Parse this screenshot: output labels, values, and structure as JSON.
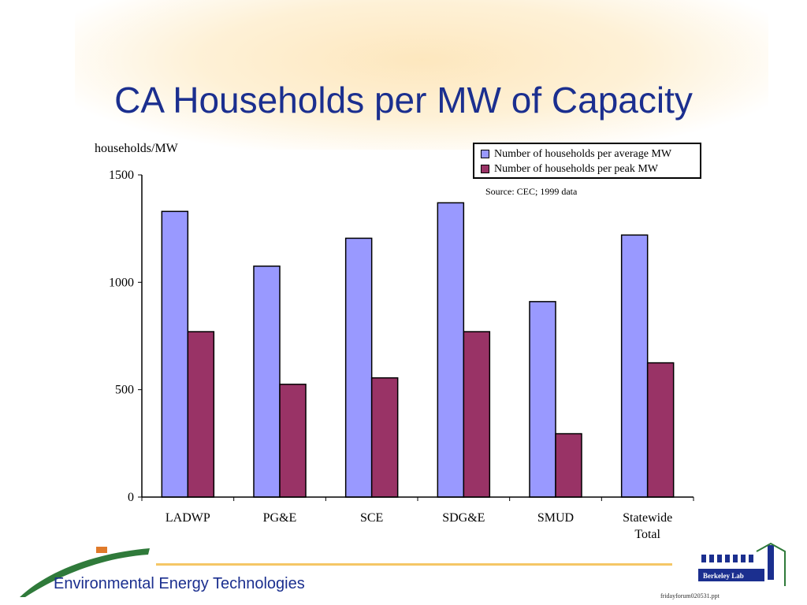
{
  "slide": {
    "title": "CA Households per MW of Capacity",
    "footer_text": "Environmental Energy Technologies",
    "footer_file": "fridayforum020531.ppt",
    "logo_text": "Berkeley Lab"
  },
  "colors": {
    "title": "#1b2f8f",
    "series_average": "#9999ff",
    "series_peak": "#993366",
    "footer_line": "#f5c766"
  },
  "source_note": "Source:  CEC; 1999 data",
  "chart_data": {
    "type": "bar",
    "ylabel": "households/MW",
    "xlabel": "",
    "ylim": [
      0,
      1500
    ],
    "yticks": [
      0,
      500,
      1000,
      1500
    ],
    "categories": [
      "LADWP",
      "PG&E",
      "SCE",
      "SDG&E",
      "SMUD",
      "Statewide Total"
    ],
    "series": [
      {
        "name": "Number of households per average MW",
        "values": [
          1330,
          1075,
          1205,
          1370,
          910,
          1220
        ]
      },
      {
        "name": "Number of households per peak MW",
        "values": [
          770,
          525,
          555,
          770,
          295,
          625
        ]
      }
    ],
    "legend_position": "top-right",
    "grid": false
  }
}
